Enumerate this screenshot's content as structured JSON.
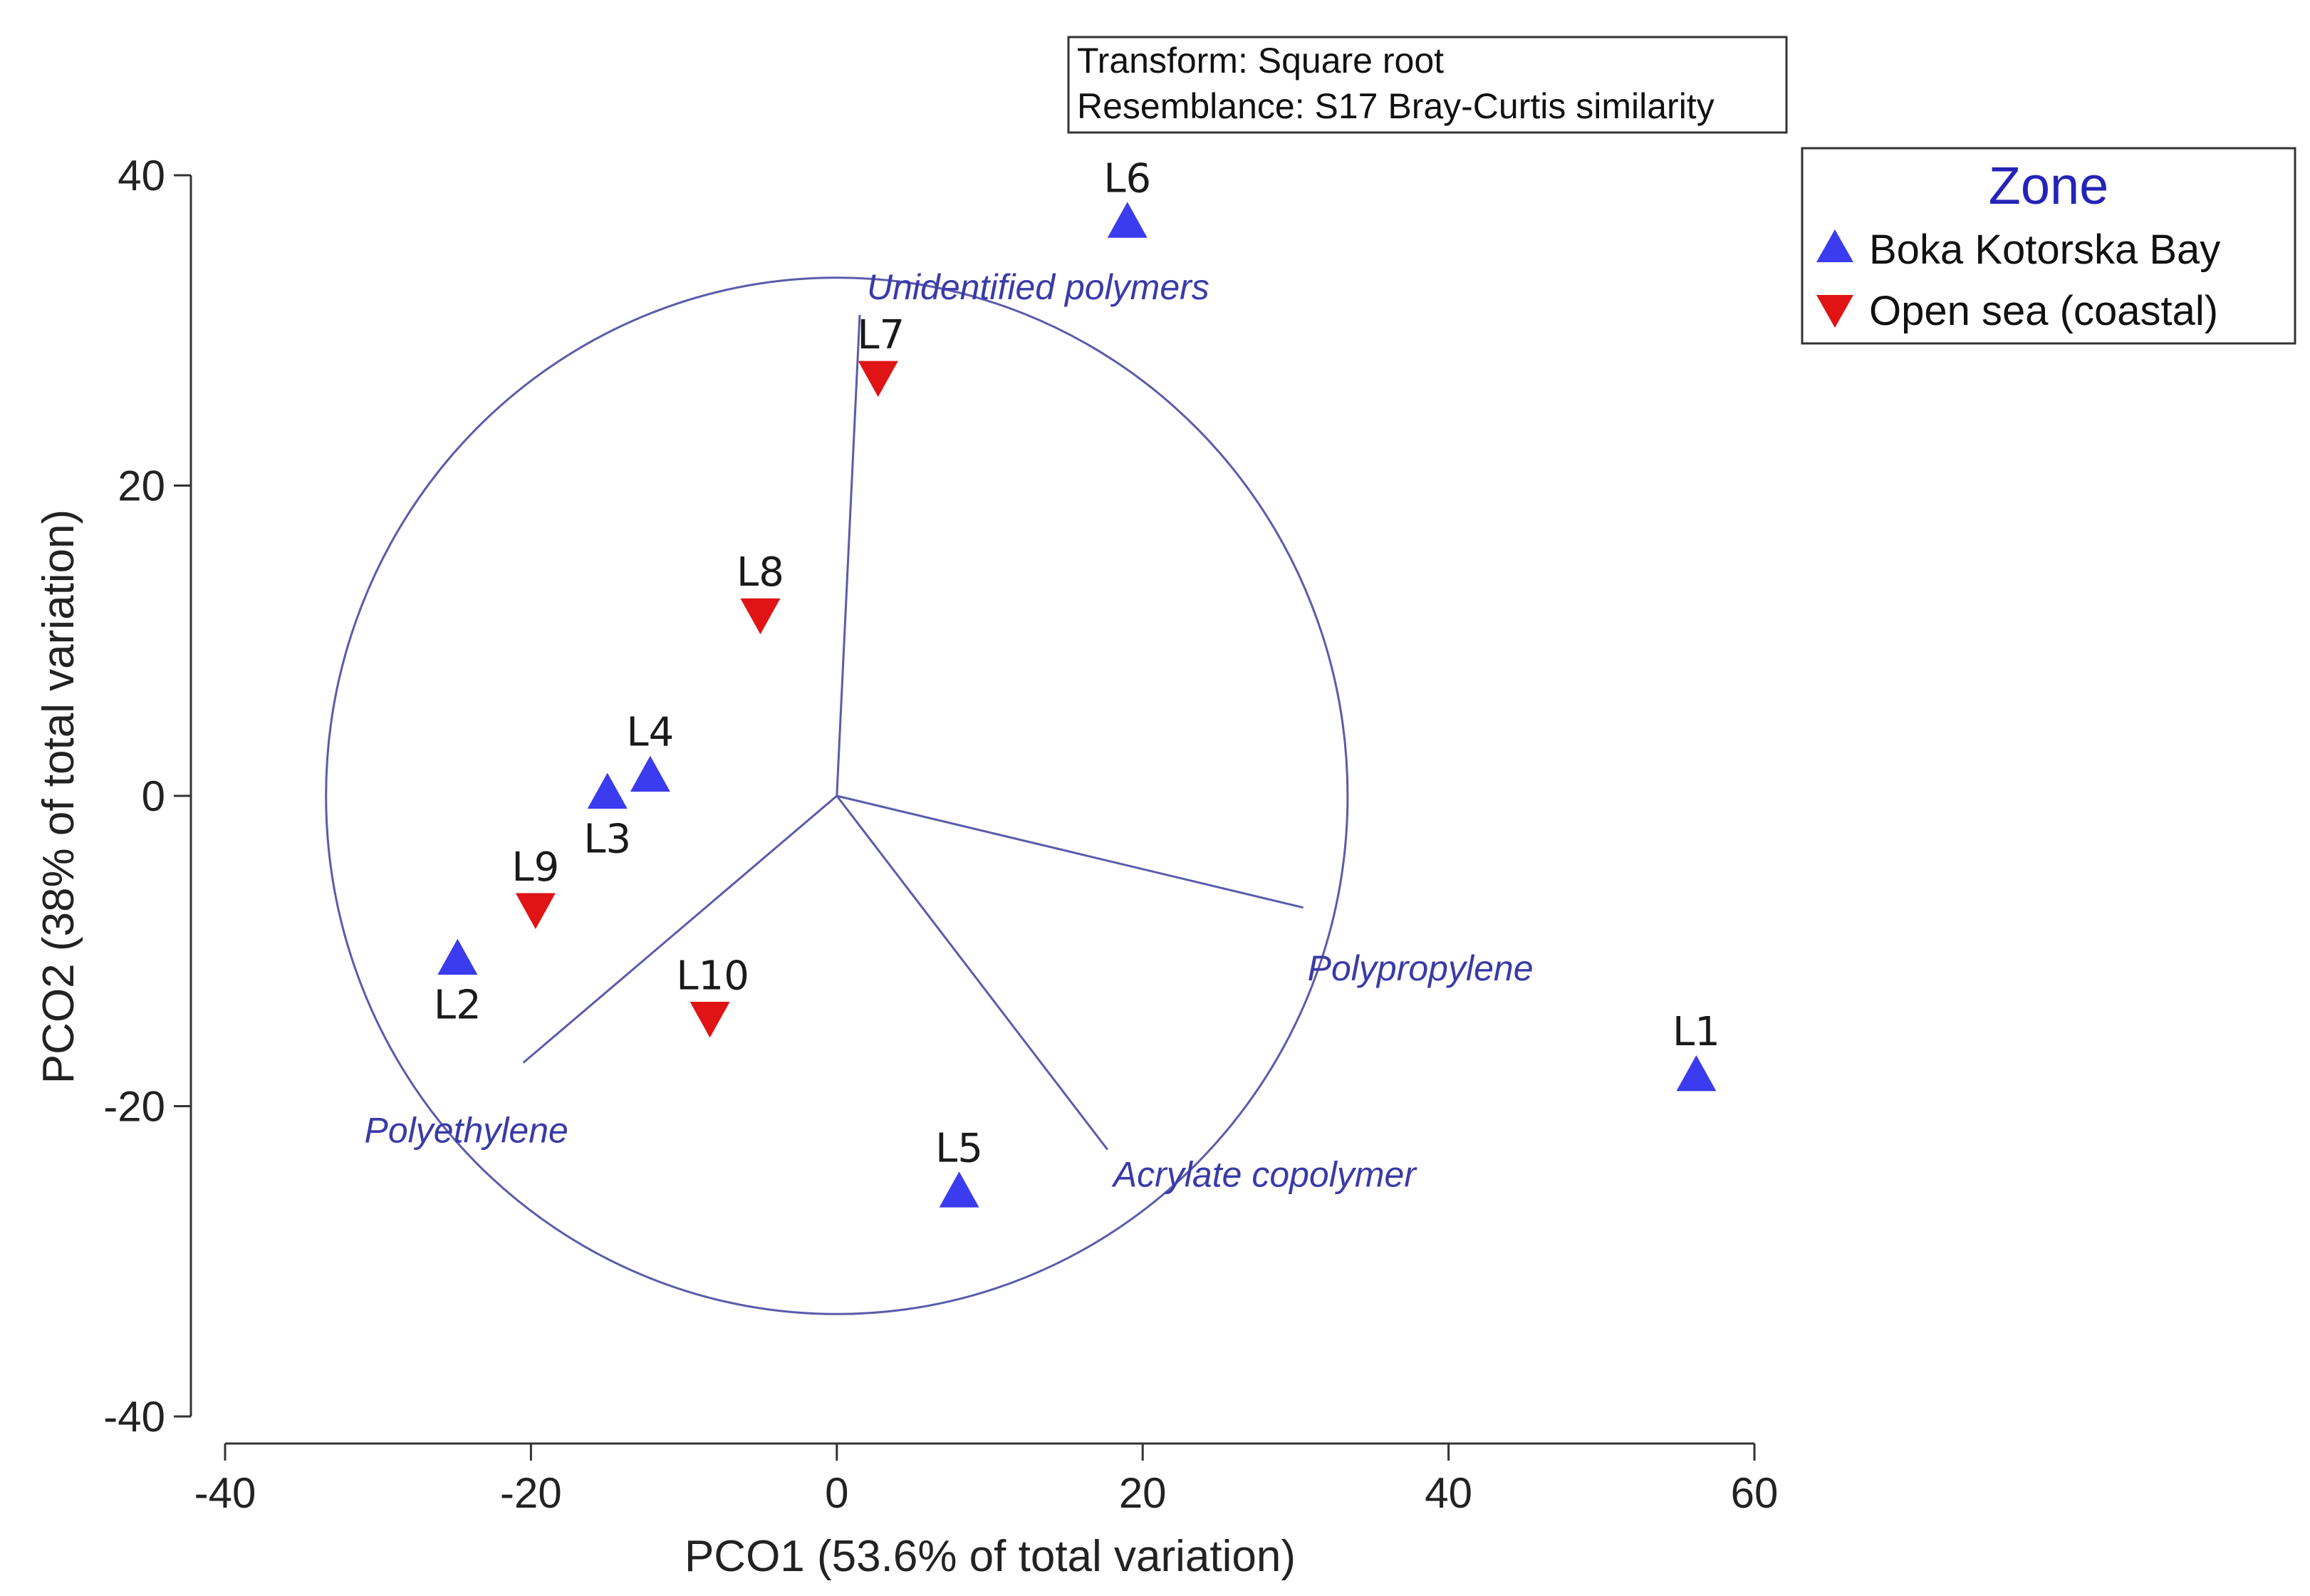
{
  "chart_data": {
    "type": "scatter",
    "title": "",
    "xlabel": "PCO1 (53.6% of total variation)",
    "ylabel": "PCO2 (38% of total variation)",
    "xlim": [
      -40,
      60
    ],
    "ylim": [
      -40,
      40
    ],
    "x_ticks": [
      {
        "value": -40,
        "label": "-40"
      },
      {
        "value": -20,
        "label": "-20"
      },
      {
        "value": 0,
        "label": "0"
      },
      {
        "value": 20,
        "label": "20"
      },
      {
        "value": 40,
        "label": "40"
      },
      {
        "value": 60,
        "label": "60"
      }
    ],
    "y_ticks": [
      {
        "value": 40,
        "label": "40"
      },
      {
        "value": 20,
        "label": "20"
      },
      {
        "value": 0,
        "label": "0"
      },
      {
        "value": -20,
        "label": "-20"
      },
      {
        "value": -40,
        "label": "-40"
      }
    ],
    "info_box": [
      "Transform: Square root",
      "Resemblance: S17 Bray-Curtis similarity"
    ],
    "legend": {
      "title": "Zone",
      "placement": "top-right, outside plot",
      "entries": [
        {
          "label": "Boka Kotorska Bay",
          "marker": "triangle-up",
          "color": "#3b3bf0"
        },
        {
          "label": "Open sea (coastal)",
          "marker": "triangle-down",
          "color": "#e01414"
        }
      ]
    },
    "series": [
      {
        "name": "Boka Kotorska Bay",
        "marker": "triangle-up",
        "color": "#3b3bf0",
        "points": [
          {
            "label": "L1",
            "x": 56.2,
            "y": -18.0
          },
          {
            "label": "L2",
            "x": -24.8,
            "y": -10.5
          },
          {
            "label": "L3",
            "x": -15.0,
            "y": 0.2
          },
          {
            "label": "L4",
            "x": -12.2,
            "y": 1.3
          },
          {
            "label": "L5",
            "x": 8.0,
            "y": -25.5
          },
          {
            "label": "L6",
            "x": 19.0,
            "y": 37.0
          }
        ]
      },
      {
        "name": "Open sea (coastal)",
        "marker": "triangle-down",
        "color": "#e01414",
        "points": [
          {
            "label": "L7",
            "x": 2.7,
            "y": 27.0
          },
          {
            "label": "L8",
            "x": -5.0,
            "y": 11.7
          },
          {
            "label": "L9",
            "x": -19.7,
            "y": -7.3
          },
          {
            "label": "L10",
            "x": -8.3,
            "y": -14.3
          }
        ]
      }
    ],
    "correlation_circle": {
      "center": [
        0,
        0
      ],
      "radius": 33.4,
      "color": "#5b5bab"
    },
    "vectors": [
      {
        "name": "Unidentified polymers",
        "x": 1.5,
        "y": 31.0
      },
      {
        "name": "Polypropylene",
        "x": 30.5,
        "y": -7.2
      },
      {
        "name": "Acrylate copolymer",
        "x": 17.7,
        "y": -22.8
      },
      {
        "name": "Polyethylene",
        "x": -20.5,
        "y": -17.2
      }
    ],
    "vector_label_color": "#3a3aa8",
    "axis_color": "#333333"
  }
}
